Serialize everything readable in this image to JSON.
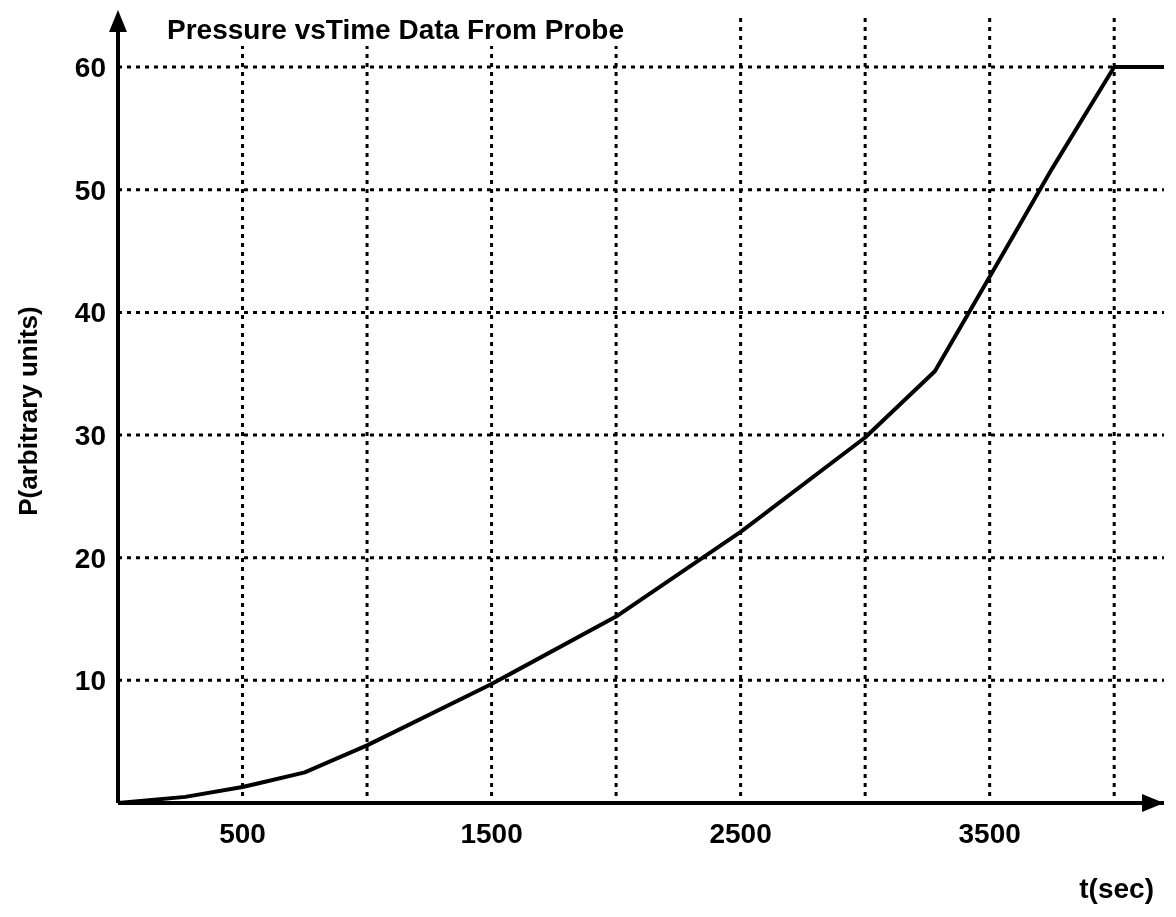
{
  "chart_data": {
    "type": "line",
    "title": "Pressure vsTime Data From Probe",
    "xlabel": "t(sec)",
    "ylabel": "P(arbitrary units)",
    "x": [
      0,
      270,
      500,
      750,
      1000,
      1500,
      2000,
      2500,
      3000,
      3280,
      3500,
      3750,
      4000,
      4200
    ],
    "values": [
      0,
      0.5,
      1.3,
      2.5,
      4.7,
      9.7,
      15.2,
      22.1,
      29.8,
      35.2,
      42.9,
      51.7,
      60,
      60
    ],
    "color": "#000000",
    "marker": "none",
    "line_style": "solid",
    "grid": true,
    "xlim": [
      0,
      4200
    ],
    "xticks": [
      500,
      {
        "value": 1000,
        "label": null
      },
      1500,
      {
        "value": 2000,
        "label": null
      },
      2500,
      {
        "value": 3000,
        "label": null
      },
      3500,
      {
        "value": 4000,
        "label": null
      }
    ],
    "ylim": [
      0,
      64
    ],
    "yticks": [
      10,
      20,
      30,
      40,
      50,
      60
    ]
  }
}
